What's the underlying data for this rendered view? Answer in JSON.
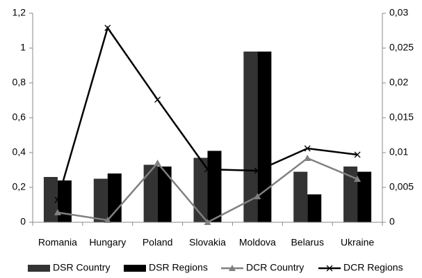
{
  "chart_data": {
    "type": "bar-line",
    "categories": [
      "Romania",
      "Hungary",
      "Poland",
      "Slovakia",
      "Moldova",
      "Belarus",
      "Ukraine"
    ],
    "series": [
      {
        "name": "DSR Country",
        "type": "bar",
        "color": "#333333",
        "values": [
          0.26,
          0.25,
          0.33,
          0.37,
          0.98,
          0.29,
          0.32
        ]
      },
      {
        "name": "DSR Regions",
        "type": "bar",
        "color": "#000000",
        "values": [
          0.24,
          0.28,
          0.32,
          0.41,
          0.98,
          0.16,
          0.29
        ]
      },
      {
        "name": "DCR Country",
        "type": "line",
        "axis": "y2",
        "marker": "triangle",
        "color": "#808080",
        "values": [
          0.0014,
          0.0003,
          0.0085,
          0,
          0.0037,
          0.0092,
          0.0062
        ]
      },
      {
        "name": "DCR Regions",
        "type": "line",
        "axis": "y2",
        "marker": "x",
        "color": "#000000",
        "values": [
          0.0032,
          0.0279,
          0.0176,
          0.0076,
          0.0074,
          0.0106,
          0.0097
        ]
      }
    ],
    "ylim": [
      0,
      1.2
    ],
    "yticks": [
      0,
      {
        "value": 0.2,
        "label": "0,2"
      },
      {
        "value": 0.4,
        "label": "0,4"
      },
      {
        "value": 0.6,
        "label": "0,6"
      },
      {
        "value": 0.8,
        "label": "0,8"
      },
      1,
      {
        "value": 1.2,
        "label": "1,2"
      }
    ],
    "y2lim": [
      0,
      0.03
    ],
    "y2ticks": [
      0,
      {
        "value": 0.005,
        "label": "0,005"
      },
      {
        "value": 0.01,
        "label": "0,01"
      },
      {
        "value": 0.015,
        "label": "0,015"
      },
      {
        "value": 0.02,
        "label": "0,02"
      },
      {
        "value": 0.025,
        "label": "0,025"
      },
      {
        "value": 0.03,
        "label": "0,03"
      }
    ],
    "legend": "bottom"
  }
}
